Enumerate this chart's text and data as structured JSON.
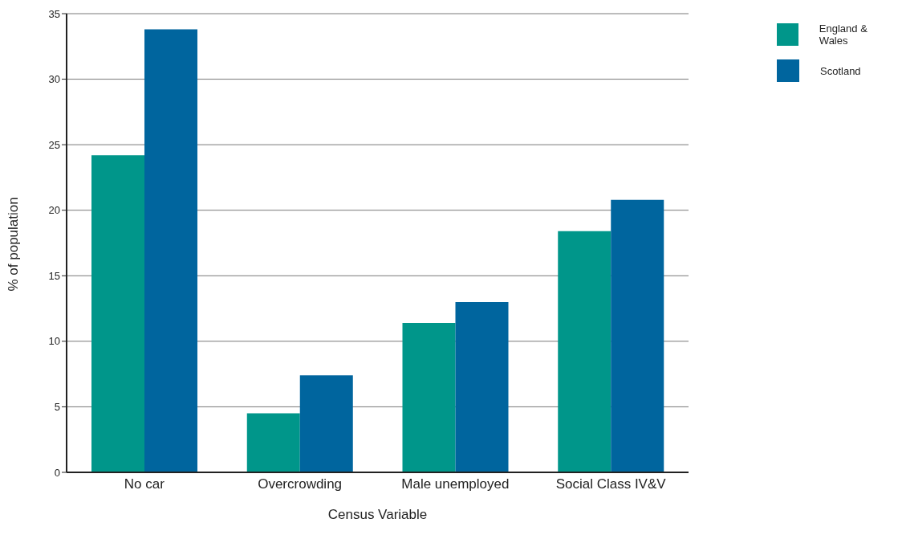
{
  "chart_data": {
    "type": "bar",
    "xlabel": "Census Variable",
    "ylabel": "% of population",
    "categories": [
      "No car",
      "Overcrowding",
      "Male unemployed",
      "Social Class IV&V"
    ],
    "series": [
      {
        "name": "England & Wales",
        "color": "#00968a",
        "values": [
          24.2,
          4.5,
          11.4,
          18.4
        ]
      },
      {
        "name": "Scotland",
        "color": "#00659e",
        "values": [
          33.8,
          7.4,
          13.0,
          20.8
        ]
      }
    ],
    "ylim": [
      0,
      35
    ],
    "yticks": [
      0,
      5,
      10,
      15,
      20,
      25,
      30,
      35
    ],
    "grid": "y",
    "legend": "top right"
  }
}
